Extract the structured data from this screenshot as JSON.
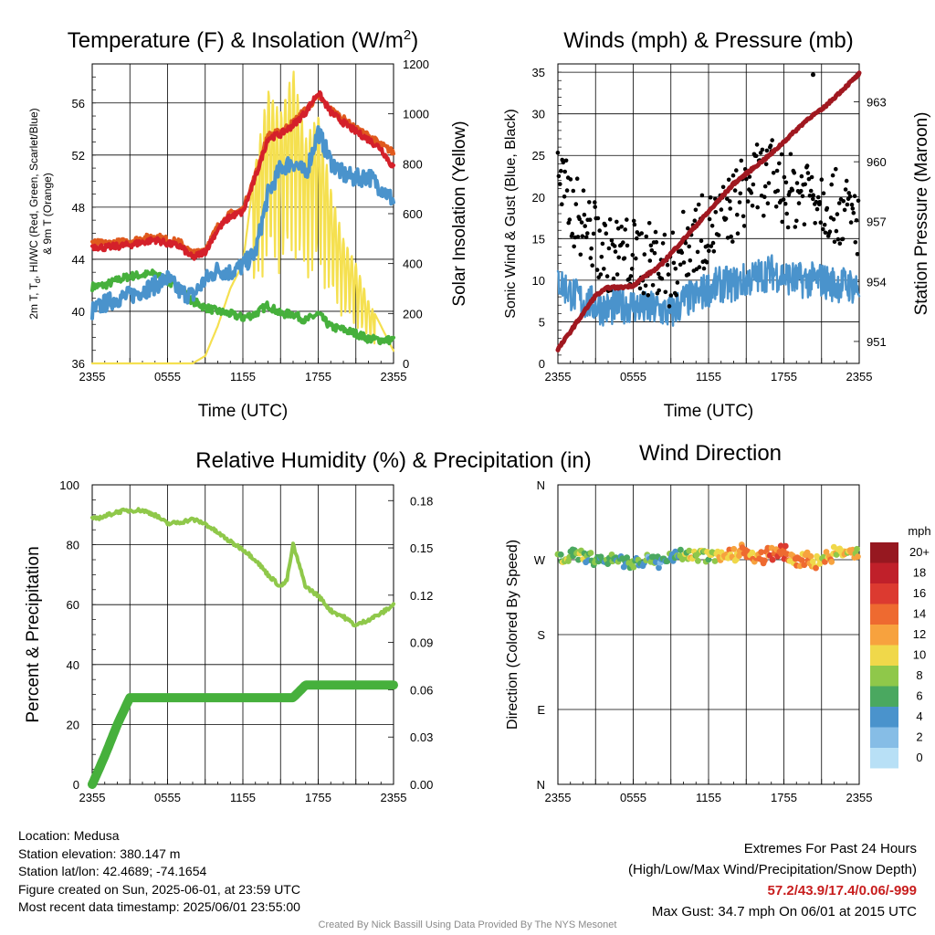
{
  "chart_data": [
    {
      "type": "line",
      "title_pre": "Temperature (F) & Insolation (W/m",
      "title_sup": "2",
      "title_post": ")",
      "xlabel": "Time (UTC)",
      "ylabel": "2m T, T, HI/WC (Red, Green, Scarlet/Blue) & 9m T (Orange)",
      "ylabel_lines": [
        "2m T, T",
        "d",
        ", HI/WC (Red, Green, Scarlet/Blue)",
        "& 9m T (Orange)"
      ],
      "y2label": "Solar Insolation (Yellow)",
      "xticks": [
        "2355",
        "0555",
        "1155",
        "1755",
        "2355"
      ],
      "ylim": [
        36,
        59
      ],
      "yticks": [
        36,
        40,
        44,
        48,
        52,
        56
      ],
      "y2lim": [
        0,
        1200
      ],
      "y2ticks": [
        0,
        200,
        400,
        600,
        800,
        1000,
        1200
      ],
      "grid": true,
      "series": [
        {
          "color": "#e05a1e",
          "x": [
            0,
            1,
            2,
            3,
            4,
            5,
            6,
            7,
            8,
            9,
            10,
            11,
            12,
            13,
            14,
            15,
            16,
            17,
            18,
            19,
            20,
            21,
            22,
            23,
            24
          ],
          "y": [
            45.3,
            45.2,
            45.3,
            45.4,
            45.6,
            45.8,
            45.5,
            45.3,
            44.4,
            44.8,
            46.5,
            47.5,
            47.8,
            50.5,
            53.5,
            53.8,
            54.5,
            55.5,
            56.5,
            55.5,
            54.8,
            54.0,
            53.5,
            52.8,
            52.2
          ]
        },
        {
          "color": "#d4202a",
          "x": [
            0,
            1,
            2,
            3,
            4,
            5,
            6,
            7,
            8,
            9,
            10,
            11,
            12,
            13,
            14,
            15,
            16,
            17,
            18,
            19,
            20,
            21,
            22,
            23,
            24
          ],
          "y": [
            45.0,
            44.9,
            45.0,
            45.1,
            45.3,
            45.5,
            45.2,
            45.0,
            44.1,
            44.6,
            46.3,
            47.3,
            47.6,
            50.3,
            53.3,
            53.6,
            54.3,
            55.3,
            56.8,
            55.3,
            54.5,
            53.8,
            53.2,
            52.5,
            51.0
          ]
        },
        {
          "color": "#4a93cc",
          "x": [
            0,
            1,
            2,
            3,
            4,
            5,
            6,
            7,
            8,
            9,
            10,
            11,
            12,
            13,
            14,
            15,
            16,
            17,
            18,
            19,
            20,
            21,
            22,
            23,
            24
          ],
          "y": [
            40.0,
            40.6,
            41.0,
            41.2,
            41.6,
            42.0,
            42.5,
            41.5,
            41.2,
            42.4,
            43.2,
            43.0,
            43.5,
            44.5,
            49.0,
            51.0,
            51.5,
            50.5,
            53.8,
            51.5,
            50.5,
            50.2,
            50.4,
            49.5,
            48.5
          ]
        },
        {
          "color": "#46b03c",
          "x": [
            0,
            1,
            2,
            3,
            4,
            5,
            6,
            7,
            8,
            9,
            10,
            11,
            12,
            13,
            14,
            15,
            16,
            17,
            18,
            19,
            20,
            21,
            22,
            23,
            24
          ],
          "y": [
            41.9,
            42.0,
            42.4,
            42.7,
            42.8,
            42.9,
            42.3,
            41.7,
            40.8,
            40.3,
            40.0,
            39.8,
            39.5,
            39.8,
            40.5,
            39.8,
            39.8,
            39.3,
            39.8,
            38.8,
            38.6,
            38.3,
            37.9,
            37.8,
            37.8
          ]
        },
        {
          "color": "#f5e050",
          "x": [
            0,
            1,
            2,
            3,
            4,
            5,
            6,
            7,
            8,
            9,
            10,
            11,
            12,
            13,
            14,
            15,
            16,
            17,
            18,
            19,
            20,
            21,
            22,
            23,
            24
          ],
          "y": [
            0,
            0,
            0,
            0,
            0,
            0,
            0,
            0,
            0,
            30,
            150,
            300,
            400,
            800,
            1100,
            1000,
            1180,
            900,
            1000,
            700,
            500,
            400,
            250,
            150,
            50
          ]
        }
      ]
    },
    {
      "type": "scatter",
      "title": "Winds (mph) & Pressure (mb)",
      "xlabel": "Time (UTC)",
      "ylabel": "Sonic Wind & Gust (Blue, Black)",
      "y2label": "Station Pressure (Maroon)",
      "xticks": [
        "2355",
        "0555",
        "1155",
        "1755",
        "2355"
      ],
      "ylim": [
        0,
        36
      ],
      "yticks": [
        0,
        5,
        10,
        15,
        20,
        25,
        30,
        35
      ],
      "y2lim": [
        949.9,
        964.9
      ],
      "y2ticks": [
        951,
        954,
        957,
        960,
        963
      ],
      "grid": true,
      "series": [
        {
          "kind": "pressure",
          "color": "#a01820",
          "x": [
            0,
            1,
            2,
            3,
            4,
            5,
            6,
            7,
            8,
            9,
            10,
            11,
            12,
            13,
            14,
            15,
            16,
            17,
            18,
            19,
            20,
            21,
            22,
            23,
            24
          ],
          "y": [
            950.6,
            951.5,
            952.4,
            953.3,
            953.7,
            953.7,
            953.8,
            954.3,
            954.7,
            955.4,
            956.1,
            956.8,
            957.5,
            958.2,
            958.9,
            959.4,
            959.9,
            960.4,
            961.0,
            961.6,
            962.2,
            962.6,
            963.2,
            963.8,
            964.4
          ]
        },
        {
          "kind": "wind",
          "color": "#4a93cc",
          "x": [
            0,
            1,
            2,
            3,
            4,
            5,
            6,
            7,
            8,
            9,
            10,
            11,
            12,
            13,
            14,
            15,
            16,
            17,
            18,
            19,
            20,
            21,
            22,
            23,
            24
          ],
          "y": [
            10.0,
            8.5,
            7.5,
            7.0,
            6.5,
            7.0,
            7.0,
            6.5,
            6.5,
            6.0,
            7.5,
            8.0,
            9.0,
            9.5,
            9.5,
            10.0,
            10.5,
            11.0,
            10.5,
            10.0,
            10.0,
            10.0,
            9.5,
            9.5,
            9.0
          ]
        },
        {
          "kind": "gust",
          "color": "#000000",
          "x": [
            0,
            1,
            2,
            3,
            4,
            5,
            6,
            7,
            8,
            9,
            10,
            11,
            12,
            13,
            14,
            15,
            16,
            17,
            18,
            19,
            20,
            21,
            22,
            23,
            24
          ],
          "y": [
            22.0,
            19.0,
            17.0,
            15.0,
            13.0,
            13.5,
            13.0,
            12.5,
            12.5,
            11.0,
            14.0,
            15.5,
            16.0,
            17.0,
            19.0,
            21.0,
            22.0,
            22.5,
            21.0,
            20.5,
            21.5,
            20.0,
            19.0,
            18.0,
            17.0
          ]
        }
      ],
      "max_gust": {
        "x": 20.33,
        "y": 34.7
      }
    },
    {
      "type": "line",
      "title": "Relative Humidity (%) & Precipitation (in)",
      "ylabel": "Percent & Precipitation",
      "xticks": [
        "2355",
        "0555",
        "1155",
        "1755",
        "2355"
      ],
      "ylim": [
        0,
        100
      ],
      "yticks": [
        0,
        20,
        40,
        60,
        80,
        100
      ],
      "y2lim": [
        0,
        0.19
      ],
      "y2ticks": [
        "0.00",
        "0.03",
        "0.06",
        "0.09",
        "0.12",
        "0.15",
        "0.18"
      ],
      "grid": true,
      "series": [
        {
          "kind": "rh",
          "color": "#8fc84a",
          "x": [
            0,
            1,
            2,
            3,
            4,
            5,
            6,
            7,
            8,
            9,
            10,
            11,
            12,
            13,
            14,
            15,
            15.5,
            16,
            17,
            18,
            19,
            20,
            21,
            22,
            23,
            24
          ],
          "y": [
            88.5,
            89.5,
            91.0,
            91.5,
            91.5,
            90.0,
            87.0,
            87.5,
            88.5,
            87.0,
            84.0,
            81.0,
            78.5,
            75.0,
            70.0,
            66.0,
            68.0,
            80.0,
            66.0,
            63.0,
            58.0,
            56.0,
            53.0,
            55.0,
            57.0,
            60.0
          ]
        },
        {
          "kind": "precip",
          "color": "#46b03c",
          "x": [
            0,
            1,
            2,
            3,
            4,
            5,
            6,
            7,
            8,
            9,
            10,
            11,
            12,
            13,
            14,
            15,
            16,
            17,
            18,
            19,
            20,
            21,
            22,
            23,
            24
          ],
          "y": [
            0.0,
            0.018,
            0.038,
            0.055,
            0.055,
            0.055,
            0.055,
            0.055,
            0.055,
            0.055,
            0.055,
            0.055,
            0.055,
            0.055,
            0.055,
            0.055,
            0.055,
            0.063,
            0.063,
            0.063,
            0.063,
            0.063,
            0.063,
            0.063,
            0.063
          ]
        }
      ]
    },
    {
      "type": "scatter",
      "title": "Wind Direction",
      "ylabel": "Direction (Colored By Speed)",
      "xticks": [
        "2355",
        "0555",
        "1155",
        "1755",
        "2355"
      ],
      "yticks": [
        "N",
        "E",
        "S",
        "W",
        "N"
      ],
      "ylim": [
        0,
        360
      ],
      "grid": true,
      "colorbar": {
        "label": "mph",
        "levels": [
          "20+",
          "18",
          "16",
          "14",
          "12",
          "10",
          "8",
          "6",
          "4",
          "2",
          "0"
        ],
        "colors": [
          "#961820",
          "#c0202a",
          "#dc3a30",
          "#ee6a30",
          "#f7a23e",
          "#f0d84a",
          "#8fc84a",
          "#4aa860",
          "#4a93cc",
          "#86bde6",
          "#b8e0f6"
        ]
      },
      "series": [
        {
          "kind": "direction",
          "x": [
            0,
            1,
            2,
            3,
            4,
            5,
            6,
            7,
            8,
            9,
            10,
            11,
            12,
            13,
            14,
            15,
            16,
            17,
            18,
            19,
            20,
            21,
            22,
            23,
            24
          ],
          "y": [
            272,
            276,
            274,
            270,
            272,
            268,
            266,
            270,
            267,
            272,
            276,
            275,
            273,
            276,
            278,
            280,
            274,
            279,
            282,
            270,
            271,
            270,
            275,
            278,
            276
          ],
          "speed": [
            9,
            8,
            7,
            6,
            6,
            6,
            6,
            5,
            5,
            5,
            8,
            9,
            9,
            10,
            11,
            12,
            13,
            14,
            14,
            12,
            12,
            11,
            11,
            10,
            9
          ]
        }
      ]
    }
  ],
  "info": {
    "location": "Location: Medusa",
    "elevation": "Station elevation: 380.147 m",
    "latlon": "Station lat/lon: 42.4689; -74.1654",
    "created": "Figure created on Sun, 2025-06-01, at 23:59 UTC",
    "recent": "Most recent data timestamp: 2025/06/01 23:55:00"
  },
  "extremes": {
    "title": "Extremes For Past 24 Hours",
    "subtitle": "(High/Low/Max Wind/Precipitation/Snow Depth)",
    "values": "57.2/43.9/17.4/0.06/-999",
    "max_gust": "Max Gust: 34.7 mph On 06/01 at 2015 UTC"
  },
  "credit": "Created By Nick Bassill Using Data Provided By The NYS Mesonet"
}
